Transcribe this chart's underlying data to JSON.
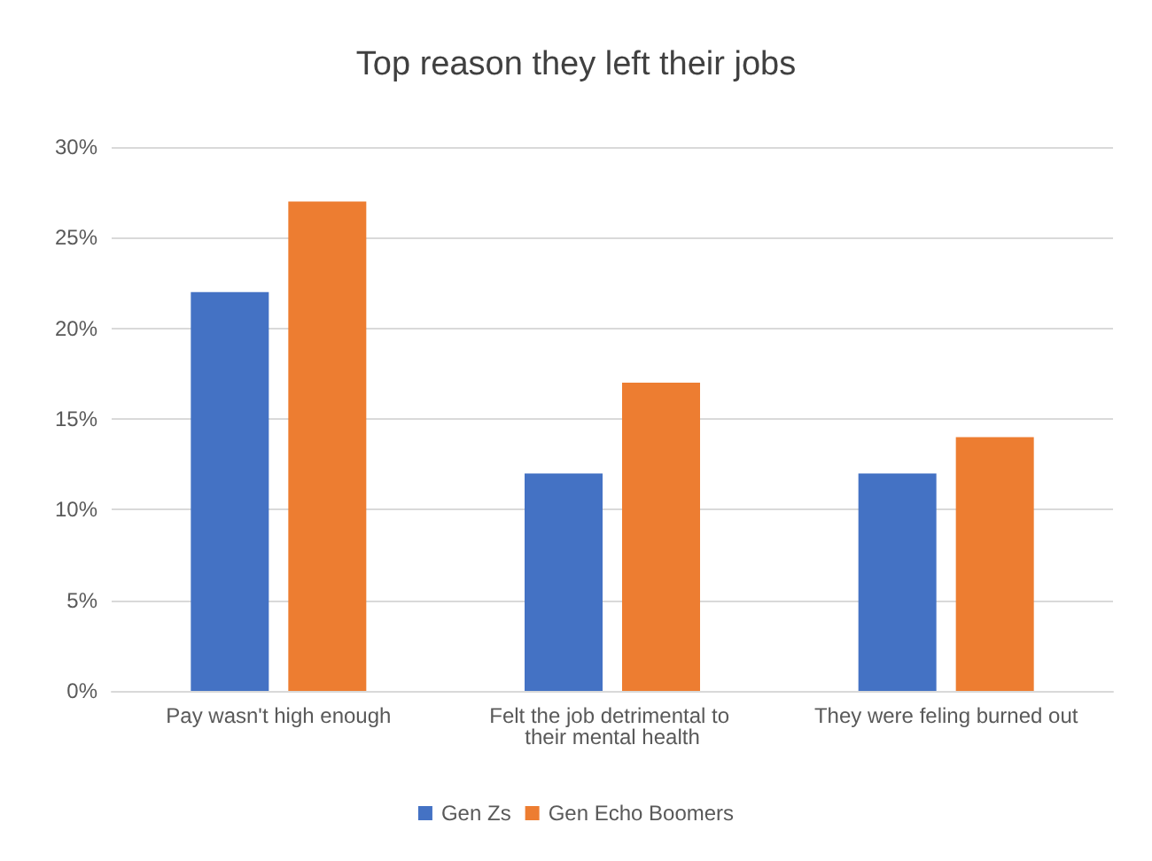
{
  "chart_data": {
    "type": "bar",
    "title": "Top reason they left their jobs",
    "categories": [
      "Pay wasn't high enough",
      "Felt the job detrimental to their mental health",
      "They were feling burned out"
    ],
    "series": [
      {
        "name": "Gen Zs",
        "color": "#4472c4",
        "values": [
          22,
          12,
          12
        ]
      },
      {
        "name": "Gen Echo Boomers",
        "color": "#ed7d31",
        "values": [
          27,
          17,
          14
        ]
      }
    ],
    "ylim": [
      0,
      30
    ],
    "yticks": [
      {
        "value": 0,
        "label": "0%"
      },
      {
        "value": 5,
        "label": "5%"
      },
      {
        "value": 10,
        "label": "10%"
      },
      {
        "value": 15,
        "label": "15%"
      },
      {
        "value": 20,
        "label": "20%"
      },
      {
        "value": 25,
        "label": "25%"
      },
      {
        "value": 30,
        "label": "30%"
      }
    ],
    "grid": "y",
    "legend": "bottom"
  }
}
